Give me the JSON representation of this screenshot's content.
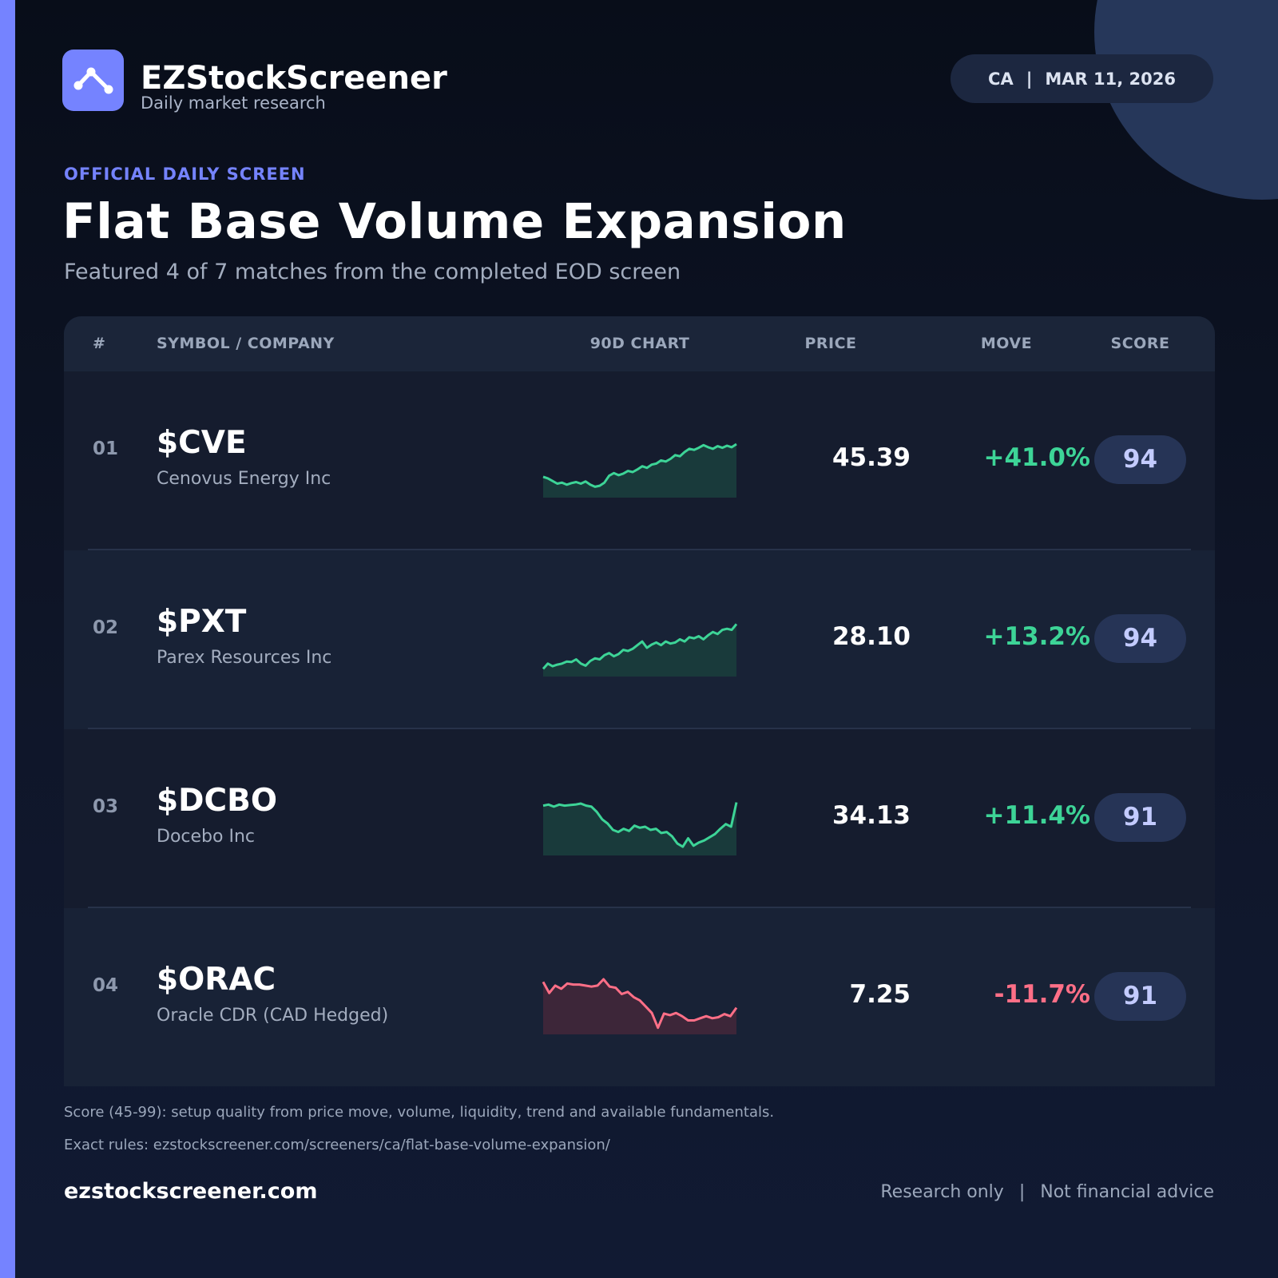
{
  "brand": {
    "name": "EZStockScreener",
    "tagline": "Daily market research",
    "logo_icon": "chart-line-icon"
  },
  "meta": {
    "region": "CA",
    "separator": "|",
    "date": "MAR 11, 2026"
  },
  "header": {
    "kicker": "OFFICIAL DAILY SCREEN",
    "title": "Flat Base Volume Expansion",
    "subtitle": "Featured 4 of 7 matches from the completed EOD screen"
  },
  "table": {
    "columns": {
      "rank": "#",
      "symbol": "SYMBOL / COMPANY",
      "chart": "90D CHART",
      "price": "PRICE",
      "move": "MOVE",
      "score": "SCORE"
    },
    "rows": [
      {
        "rank": "01",
        "symbol": "$CVE",
        "company": "Cenovus Energy Inc",
        "price": "45.39",
        "move": "+41.0%",
        "direction": "up",
        "score": "94",
        "spark": [
          0.35,
          0.32,
          0.27,
          0.22,
          0.24,
          0.2,
          0.23,
          0.25,
          0.22,
          0.26,
          0.2,
          0.16,
          0.18,
          0.24,
          0.37,
          0.42,
          0.38,
          0.41,
          0.46,
          0.44,
          0.49,
          0.55,
          0.52,
          0.58,
          0.6,
          0.66,
          0.64,
          0.69,
          0.76,
          0.74,
          0.82,
          0.88,
          0.86,
          0.9,
          0.95,
          0.91,
          0.88,
          0.93,
          0.9,
          0.94,
          0.91,
          0.97
        ]
      },
      {
        "rank": "02",
        "symbol": "$PXT",
        "company": "Parex Resources Inc",
        "price": "28.10",
        "move": "+13.2%",
        "direction": "up",
        "score": "94",
        "spark": [
          0.1,
          0.2,
          0.15,
          0.18,
          0.2,
          0.24,
          0.23,
          0.28,
          0.2,
          0.16,
          0.25,
          0.3,
          0.28,
          0.36,
          0.4,
          0.34,
          0.38,
          0.46,
          0.44,
          0.48,
          0.55,
          0.62,
          0.5,
          0.56,
          0.6,
          0.55,
          0.62,
          0.58,
          0.6,
          0.66,
          0.62,
          0.7,
          0.68,
          0.72,
          0.66,
          0.74,
          0.8,
          0.76,
          0.84,
          0.86,
          0.84,
          0.95
        ]
      },
      {
        "rank": "03",
        "symbol": "$DCBO",
        "company": "Docebo Inc",
        "price": "34.13",
        "move": "+11.4%",
        "direction": "up",
        "score": "91",
        "spark": [
          0.9,
          0.92,
          0.88,
          0.92,
          0.9,
          0.91,
          0.92,
          0.94,
          0.9,
          0.88,
          0.78,
          0.64,
          0.56,
          0.44,
          0.4,
          0.46,
          0.42,
          0.52,
          0.48,
          0.5,
          0.44,
          0.46,
          0.38,
          0.4,
          0.32,
          0.18,
          0.12,
          0.28,
          0.14,
          0.2,
          0.24,
          0.3,
          0.36,
          0.46,
          0.55,
          0.5,
          0.96
        ]
      },
      {
        "rank": "04",
        "symbol": "$ORAC",
        "company": "Oracle CDR (CAD Hedged)",
        "price": "7.25",
        "move": "-11.7%",
        "direction": "down",
        "score": "91",
        "spark": [
          0.95,
          0.74,
          0.88,
          0.82,
          0.92,
          0.9,
          0.9,
          0.88,
          0.86,
          0.88,
          1.0,
          0.86,
          0.84,
          0.72,
          0.76,
          0.66,
          0.6,
          0.48,
          0.36,
          0.08,
          0.35,
          0.32,
          0.36,
          0.3,
          0.22,
          0.22,
          0.26,
          0.3,
          0.26,
          0.28,
          0.34,
          0.3,
          0.46
        ]
      }
    ]
  },
  "colors": {
    "up_line": "#3dd497",
    "up_fill": "#193a3b",
    "down_line": "#ff6f87",
    "down_fill": "#3d2639",
    "up_text": "#3dd497",
    "down_text": "#ff6f87"
  },
  "notes": {
    "score_note": "Score (45-99): setup quality from price move, volume, liquidity, trend and available fundamentals.",
    "rules_note": "Exact rules: ezstockscreener.com/screeners/ca/flat-base-volume-expansion/"
  },
  "footer": {
    "domain": "ezstockscreener.com",
    "disclaimer_left": "Research only",
    "disclaimer_sep": "|",
    "disclaimer_right": "Not financial advice"
  }
}
